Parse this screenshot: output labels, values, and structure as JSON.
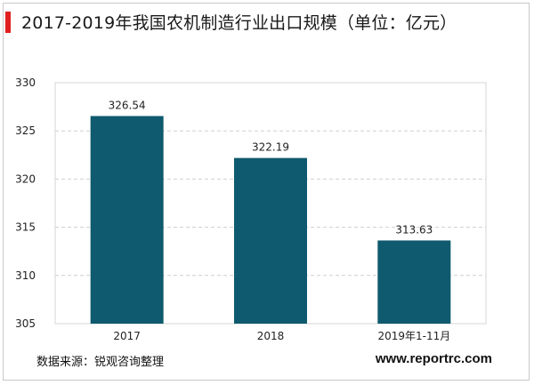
{
  "header": {
    "title": "2017-2019年我国农机制造行业出口规模（单位：亿元）",
    "accent_color": "#e02020"
  },
  "chart_data": {
    "type": "bar",
    "title": "2017-2019年我国农机制造行业出口规模（单位：亿元）",
    "categories": [
      "2017",
      "2018",
      "2019年1-11月"
    ],
    "values": [
      326.54,
      322.19,
      313.63
    ],
    "value_labels": [
      "326.54",
      "322.19",
      "313.63"
    ],
    "y_ticks": [
      305,
      310,
      315,
      320,
      325,
      330
    ],
    "ylim": [
      305,
      330
    ],
    "xlabel": "",
    "ylabel": "",
    "grid": true,
    "bar_color": "#0f5a6e"
  },
  "footer": {
    "source": "数据来源：锐观咨询整理",
    "website": "www.reportrc.com"
  }
}
